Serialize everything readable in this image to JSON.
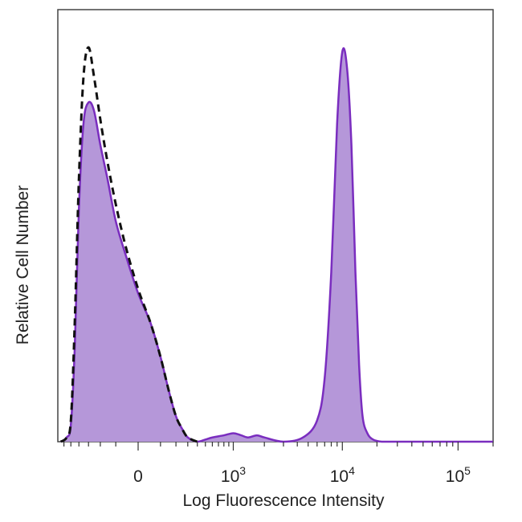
{
  "chart_data": {
    "type": "area",
    "title": "",
    "xlabel": "Log Fluorescence Intensity",
    "ylabel": "Relative Cell Number",
    "x_scale": "biexponential",
    "xlim": [
      -700,
      200000
    ],
    "ylim": [
      0,
      1.0
    ],
    "grid": false,
    "legend": "none",
    "x_ticks": [
      {
        "value": 0,
        "base": "0",
        "exponent": ""
      },
      {
        "value": 1000,
        "base": "10",
        "exponent": "3"
      },
      {
        "value": 10000,
        "base": "10",
        "exponent": "4"
      },
      {
        "value": 100000,
        "base": "10",
        "exponent": "5"
      }
    ],
    "series": [
      {
        "style": "filled",
        "color": "#7a2dbf",
        "fill": "#b597d9",
        "x": [
          -650,
          -560,
          -500,
          -450,
          -400,
          -350,
          -300,
          -250,
          -200,
          -150,
          -100,
          -50,
          0,
          50,
          100,
          150,
          200,
          250,
          300,
          400,
          500,
          600,
          800,
          1000,
          1200,
          1400,
          1700,
          2000,
          3000,
          4500,
          6000,
          7000,
          8000,
          9000,
          10000,
          11000,
          12000,
          13000,
          14000,
          15000,
          16500,
          18500,
          22000,
          30000,
          50000,
          100000,
          200000
        ],
        "y": [
          0.0,
          0.01,
          0.04,
          0.22,
          0.55,
          0.75,
          0.8,
          0.78,
          0.7,
          0.62,
          0.52,
          0.44,
          0.35,
          0.28,
          0.2,
          0.12,
          0.06,
          0.03,
          0.01,
          0.0,
          0.005,
          0.01,
          0.015,
          0.02,
          0.015,
          0.01,
          0.015,
          0.01,
          0.0,
          0.01,
          0.05,
          0.15,
          0.4,
          0.75,
          0.92,
          0.88,
          0.7,
          0.4,
          0.18,
          0.06,
          0.02,
          0.005,
          0.0,
          0.0,
          0.0,
          0.0,
          0.0
        ]
      },
      {
        "style": "dashed",
        "color": "#111111",
        "x": [
          -650,
          -560,
          -500,
          -450,
          -400,
          -350,
          -300,
          -250,
          -200,
          -150,
          -100,
          -50,
          0,
          50,
          100,
          150,
          200,
          250,
          300,
          400
        ],
        "y": [
          0.0,
          0.01,
          0.05,
          0.28,
          0.62,
          0.86,
          0.93,
          0.86,
          0.76,
          0.66,
          0.56,
          0.46,
          0.36,
          0.28,
          0.2,
          0.12,
          0.06,
          0.03,
          0.01,
          0.0
        ]
      }
    ]
  }
}
